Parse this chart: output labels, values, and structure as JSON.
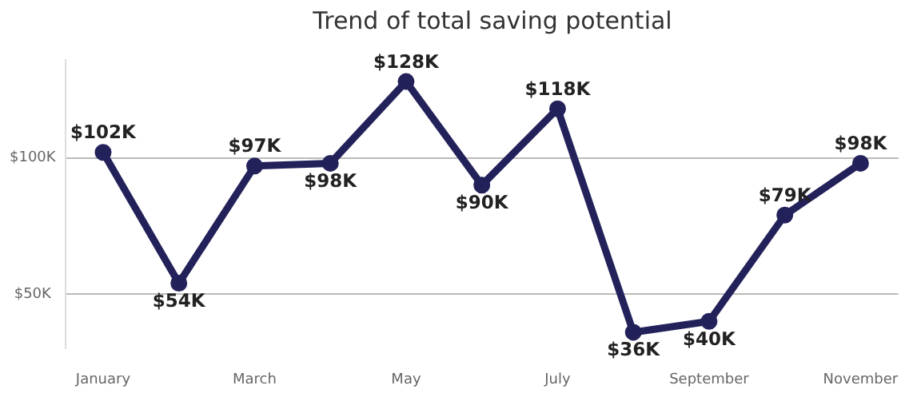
{
  "chart_data": {
    "type": "line",
    "title": "Trend of total saving potential",
    "categories": [
      "January",
      null,
      "March",
      null,
      "May",
      null,
      "July",
      null,
      "September",
      null,
      "November"
    ],
    "series": [
      {
        "color": "#23215a",
        "values": [
          102,
          54,
          97,
          98,
          128,
          90,
          118,
          36,
          40,
          79,
          98
        ],
        "value_labels": [
          "$102K",
          "$54K",
          "$97K",
          "$98K",
          "$128K",
          "$90K",
          "$118K",
          "$36K",
          "$40K",
          "$79K",
          "$98K"
        ]
      }
    ],
    "ylim": [
      30,
      136
    ],
    "yticks": [
      {
        "value": 50,
        "label": "$50K"
      },
      {
        "value": 100,
        "label": "$100K"
      }
    ],
    "grid": "y",
    "legend": false,
    "marker": "circle",
    "line_style": "solid"
  }
}
